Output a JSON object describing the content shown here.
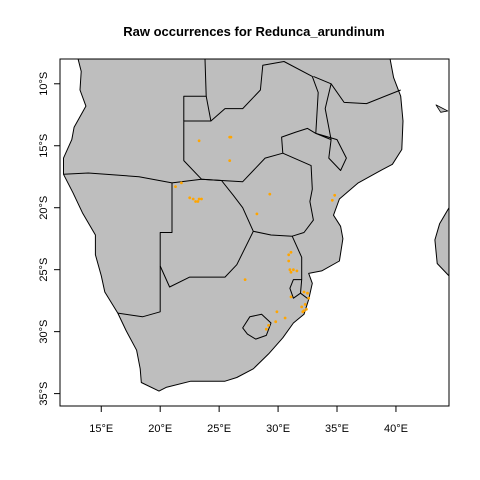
{
  "map": {
    "title": "Raw occurrences for Redunca_arundinum",
    "colors": {
      "land": "#bebebe",
      "border": "#000000",
      "points": "#ffa500",
      "ocean": "#ffffff"
    },
    "lon_range": [
      11.5,
      44.5
    ],
    "lat_range": [
      -36,
      -8
    ],
    "x_ticks": [
      {
        "value": 15,
        "label": "15°E"
      },
      {
        "value": 20,
        "label": "20°E"
      },
      {
        "value": 25,
        "label": "25°E"
      },
      {
        "value": 30,
        "label": "30°E"
      },
      {
        "value": 35,
        "label": "35°E"
      },
      {
        "value": 40,
        "label": "40°E"
      }
    ],
    "y_ticks": [
      {
        "value": -10,
        "label": "10°S"
      },
      {
        "value": -15,
        "label": "15°S"
      },
      {
        "value": -20,
        "label": "20°S"
      },
      {
        "value": -25,
        "label": "25°S"
      },
      {
        "value": -30,
        "label": "30°S"
      },
      {
        "value": -35,
        "label": "35°S"
      }
    ],
    "coastline": [
      [
        13.4,
        -5.8
      ],
      [
        12.3,
        -6.0
      ],
      [
        12.9,
        -7.5
      ],
      [
        13.3,
        -9.0
      ],
      [
        13.2,
        -10.5
      ],
      [
        13.7,
        -11.8
      ],
      [
        12.7,
        -13.5
      ],
      [
        12.5,
        -14.5
      ],
      [
        11.8,
        -16.0
      ],
      [
        11.8,
        -17.3
      ],
      [
        12.6,
        -18.8
      ],
      [
        13.4,
        -20.4
      ],
      [
        14.5,
        -22.2
      ],
      [
        14.5,
        -23.8
      ],
      [
        15.0,
        -25.5
      ],
      [
        15.3,
        -26.8
      ],
      [
        16.4,
        -28.5
      ],
      [
        17.1,
        -29.9
      ],
      [
        18.0,
        -31.5
      ],
      [
        18.3,
        -33.0
      ],
      [
        18.4,
        -34.1
      ],
      [
        19.9,
        -34.8
      ],
      [
        20.5,
        -34.5
      ],
      [
        22.6,
        -34.0
      ],
      [
        25.5,
        -34.0
      ],
      [
        26.5,
        -33.7
      ],
      [
        27.9,
        -33.0
      ],
      [
        29.2,
        -31.8
      ],
      [
        30.4,
        -30.5
      ],
      [
        31.3,
        -29.3
      ],
      [
        32.2,
        -28.6
      ],
      [
        32.6,
        -27.4
      ],
      [
        32.9,
        -26.1
      ],
      [
        32.6,
        -25.3
      ],
      [
        33.7,
        -25.1
      ],
      [
        35.2,
        -24.3
      ],
      [
        35.5,
        -22.5
      ],
      [
        35.3,
        -21.5
      ],
      [
        34.7,
        -20.6
      ],
      [
        35.2,
        -19.3
      ],
      [
        36.8,
        -18.0
      ],
      [
        38.5,
        -17.1
      ],
      [
        39.7,
        -16.5
      ],
      [
        40.5,
        -15.3
      ],
      [
        40.6,
        -13.0
      ],
      [
        40.4,
        -11.0
      ],
      [
        39.8,
        -9.5
      ],
      [
        39.5,
        -8.0
      ],
      [
        39.3,
        -6.0
      ]
    ],
    "borders": [
      [
        [
          23.9,
          -11.0
        ],
        [
          24.3,
          -13.0
        ],
        [
          22.0,
          -13.0
        ],
        [
          22.0,
          -16.2
        ],
        [
          23.5,
          -17.7
        ],
        [
          25.2,
          -17.8
        ]
      ],
      [
        [
          11.8,
          -17.3
        ],
        [
          13.9,
          -17.2
        ],
        [
          18.2,
          -17.5
        ],
        [
          21.0,
          -18.0
        ],
        [
          23.5,
          -17.7
        ],
        [
          25.2,
          -17.8
        ]
      ],
      [
        [
          21.0,
          -18.0
        ],
        [
          21.0,
          -22.0
        ],
        [
          20.0,
          -22.0
        ],
        [
          20.0,
          -24.7
        ],
        [
          20.0,
          -28.4
        ],
        [
          18.5,
          -28.8
        ],
        [
          16.4,
          -28.5
        ]
      ],
      [
        [
          25.2,
          -17.8
        ],
        [
          26.2,
          -19.0
        ],
        [
          27.0,
          -20.0
        ],
        [
          27.9,
          -21.9
        ],
        [
          29.4,
          -22.2
        ],
        [
          31.2,
          -22.3
        ],
        [
          32.0,
          -24.0
        ],
        [
          32.0,
          -25.8
        ],
        [
          31.9,
          -26.9
        ],
        [
          32.6,
          -27.4
        ]
      ],
      [
        [
          20.0,
          -24.7
        ],
        [
          20.8,
          -26.4
        ],
        [
          22.5,
          -25.6
        ],
        [
          24.0,
          -25.6
        ],
        [
          25.5,
          -25.6
        ],
        [
          26.5,
          -24.6
        ],
        [
          27.9,
          -21.9
        ]
      ],
      [
        [
          25.2,
          -17.8
        ],
        [
          27.0,
          -17.9
        ],
        [
          28.9,
          -16.0
        ],
        [
          30.4,
          -15.6
        ],
        [
          32.8,
          -16.6
        ],
        [
          32.9,
          -18.5
        ],
        [
          32.7,
          -19.5
        ],
        [
          33.0,
          -21.0
        ],
        [
          32.2,
          -22.0
        ],
        [
          31.2,
          -22.3
        ]
      ],
      [
        [
          30.4,
          -15.6
        ],
        [
          30.3,
          -14.3
        ],
        [
          31.5,
          -13.9
        ],
        [
          32.5,
          -13.6
        ],
        [
          33.2,
          -14.0
        ],
        [
          35.0,
          -14.5
        ],
        [
          35.8,
          -16.0
        ],
        [
          35.3,
          -17.0
        ],
        [
          34.3,
          -16.0
        ],
        [
          34.5,
          -14.5
        ],
        [
          33.2,
          -14.0
        ]
      ],
      [
        [
          24.3,
          -13.0
        ],
        [
          25.5,
          -12.0
        ],
        [
          27.0,
          -12.0
        ],
        [
          28.5,
          -10.5
        ],
        [
          28.7,
          -8.5
        ],
        [
          30.5,
          -8.2
        ],
        [
          32.9,
          -9.4
        ],
        [
          33.4,
          -10.7
        ],
        [
          33.2,
          -14.0
        ]
      ],
      [
        [
          34.5,
          -14.5
        ],
        [
          34.0,
          -12.0
        ],
        [
          34.5,
          -10.0
        ],
        [
          35.6,
          -11.5
        ],
        [
          37.5,
          -11.6
        ],
        [
          40.4,
          -10.5
        ]
      ],
      [
        [
          33.0,
          -9.4
        ],
        [
          34.5,
          -10.0
        ]
      ],
      [
        [
          22.0,
          -13.0
        ],
        [
          22.0,
          -11.0
        ],
        [
          23.9,
          -11.0
        ],
        [
          23.8,
          -8.0
        ]
      ],
      [
        [
          32.0,
          -25.8
        ],
        [
          31.3,
          -25.8
        ],
        [
          31.0,
          -26.5
        ],
        [
          31.3,
          -27.3
        ],
        [
          31.9,
          -26.9
        ]
      ]
    ],
    "lesotho": [
      [
        27.0,
        -29.7
      ],
      [
        27.6,
        -28.8
      ],
      [
        28.6,
        -28.6
      ],
      [
        29.4,
        -29.3
      ],
      [
        29.0,
        -30.3
      ],
      [
        28.1,
        -30.6
      ],
      [
        27.4,
        -30.2
      ]
    ],
    "madagascar": [
      [
        44.5,
        -20.0
      ],
      [
        43.7,
        -21.3
      ],
      [
        43.3,
        -22.6
      ],
      [
        43.5,
        -24.5
      ],
      [
        44.5,
        -25.5
      ]
    ],
    "islands": [
      [
        43.4,
        -11.7
      ],
      [
        44.4,
        -12.2
      ],
      [
        43.8,
        -12.3
      ]
    ],
    "occurrences": [
      [
        23.3,
        -14.6
      ],
      [
        25.9,
        -14.3
      ],
      [
        26.0,
        -14.3
      ],
      [
        25.9,
        -16.2
      ],
      [
        21.3,
        -18.3
      ],
      [
        21.8,
        -18.0
      ],
      [
        22.8,
        -19.3
      ],
      [
        23.0,
        -19.5
      ],
      [
        23.2,
        -19.5
      ],
      [
        23.3,
        -19.3
      ],
      [
        23.5,
        -19.3
      ],
      [
        22.5,
        -19.2
      ],
      [
        29.3,
        -18.9
      ],
      [
        34.8,
        -19.0
      ],
      [
        34.6,
        -19.4
      ],
      [
        28.2,
        -20.5
      ],
      [
        30.9,
        -23.8
      ],
      [
        31.1,
        -23.6
      ],
      [
        30.9,
        -24.3
      ],
      [
        31.0,
        -25.0
      ],
      [
        31.3,
        -25.0
      ],
      [
        31.6,
        -25.1
      ],
      [
        31.1,
        -25.2
      ],
      [
        27.2,
        -25.8
      ],
      [
        32.2,
        -26.8
      ],
      [
        32.5,
        -26.9
      ],
      [
        32.6,
        -27.3
      ],
      [
        31.1,
        -27.2
      ],
      [
        32.3,
        -27.8
      ],
      [
        32.0,
        -28.0
      ],
      [
        32.4,
        -28.2
      ],
      [
        32.2,
        -28.3
      ],
      [
        32.1,
        -28.4
      ],
      [
        29.9,
        -28.4
      ],
      [
        30.6,
        -28.9
      ],
      [
        29.8,
        -29.2
      ],
      [
        29.2,
        -29.5
      ],
      [
        29.0,
        -29.8
      ]
    ]
  }
}
